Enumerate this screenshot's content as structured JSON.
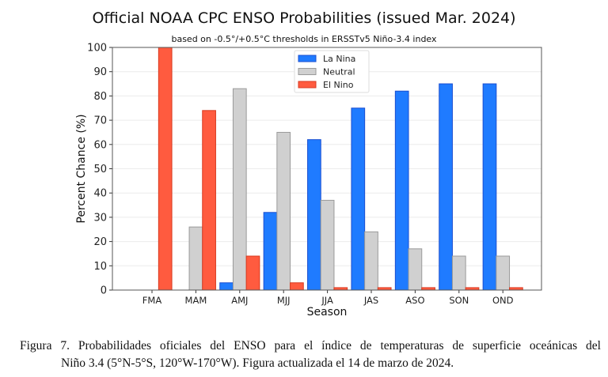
{
  "chart_data": {
    "type": "bar",
    "title": "Official NOAA CPC ENSO Probabilities (issued Mar. 2024)",
    "subtitle": "based on -0.5°/+0.5°C thresholds in ERSSTv5 Niño-3.4 index",
    "xlabel": "Season",
    "ylabel": "Percent Chance (%)",
    "ylim": [
      0,
      100
    ],
    "yticks": [
      0,
      10,
      20,
      30,
      40,
      50,
      60,
      70,
      80,
      90,
      100
    ],
    "grid": true,
    "legend_position": "top-center",
    "categories": [
      "FMA",
      "MAM",
      "AMJ",
      "MJJ",
      "JJA",
      "JAS",
      "ASO",
      "SON",
      "OND"
    ],
    "series": [
      {
        "name": "La Nina",
        "color": "#1f7bff",
        "values": [
          0,
          0,
          3,
          32,
          62,
          75,
          82,
          85,
          85
        ]
      },
      {
        "name": "Neutral",
        "color": "#d0d0d0",
        "values": [
          0,
          26,
          83,
          65,
          37,
          24,
          17,
          14,
          14
        ]
      },
      {
        "name": "El Nino",
        "color": "#ff5b3f",
        "values": [
          100,
          74,
          14,
          3,
          1,
          1,
          1,
          1,
          1
        ]
      }
    ]
  },
  "caption": {
    "line1": "Figura 7. Probabilidades oficiales del ENSO para el índice de temperaturas de superficie oceánicas del",
    "line2": "Niño 3.4 (5°N-5°S, 120°W-170°W). Figura actualizada el 14 de marzo de 2024."
  }
}
